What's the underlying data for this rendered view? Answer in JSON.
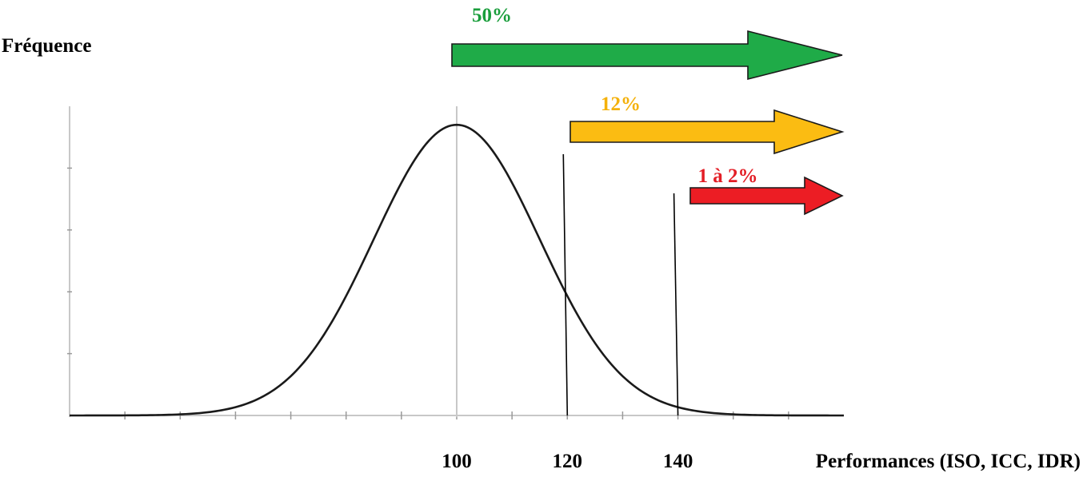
{
  "chart_data": {
    "type": "line",
    "ylabel": "Fréquence",
    "xlabel": "Performances (ISO, ICC, IDR)",
    "xlim": [
      30,
      170
    ],
    "ylim": [
      0,
      1
    ],
    "mean": 100,
    "sd": 15,
    "x_tick_labels": [
      {
        "value": 100,
        "label": "100"
      },
      {
        "value": 120,
        "label": "120"
      },
      {
        "value": 140,
        "label": "140"
      }
    ],
    "grid": false,
    "thresholds": [
      {
        "name": "mean",
        "x": 100
      },
      {
        "name": "threshold-120",
        "x": 120
      },
      {
        "name": "threshold-140",
        "x": 140
      }
    ],
    "arrows": [
      {
        "name": "arrow-50",
        "label": "50%",
        "from": 100,
        "color": "#1fab48",
        "label_color": "#1a9e3c"
      },
      {
        "name": "arrow-12",
        "label": "12%",
        "from": 120,
        "color": "#fbbc12",
        "label_color": "#f4b10b"
      },
      {
        "name": "arrow-1-2",
        "label": "1 à 2%",
        "from": 140,
        "color": "#ec1d24",
        "label_color": "#e31e26"
      }
    ]
  }
}
